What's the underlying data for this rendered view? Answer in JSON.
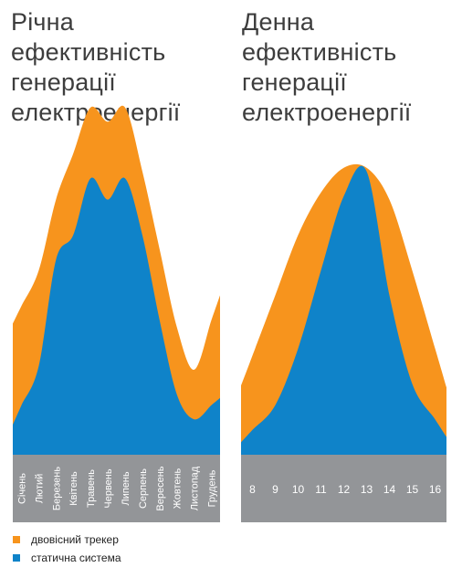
{
  "chart_data": [
    {
      "type": "area",
      "title": "Річна\nефективність\nгенерації\nелектроенергії",
      "categories": [
        "Січень",
        "Лютий",
        "Березень",
        "Квітень",
        "Травень",
        "Червень",
        "Липень",
        "Серпень",
        "Вересень",
        "Жовтень",
        "Листопад",
        "Грудень"
      ],
      "series": [
        {
          "name": "двовісний трекер",
          "values": [
            0.42,
            0.52,
            0.72,
            0.85,
            0.98,
            0.94,
            0.98,
            0.8,
            0.58,
            0.36,
            0.24,
            0.38
          ]
        },
        {
          "name": "статична система",
          "values": [
            0.14,
            0.25,
            0.55,
            0.62,
            0.78,
            0.72,
            0.78,
            0.62,
            0.38,
            0.17,
            0.1,
            0.14
          ]
        }
      ]
    },
    {
      "type": "area",
      "title": "Денна\nефективність\nгенерації\nелектроенергії",
      "categories": [
        "8",
        "9",
        "10",
        "11",
        "12",
        "13",
        "14",
        "15",
        "16"
      ],
      "series": [
        {
          "name": "двовісний трекер",
          "values": [
            0.28,
            0.45,
            0.62,
            0.74,
            0.81,
            0.81,
            0.72,
            0.52,
            0.3
          ]
        },
        {
          "name": "статична система",
          "values": [
            0.07,
            0.14,
            0.3,
            0.52,
            0.73,
            0.8,
            0.45,
            0.2,
            0.1
          ]
        }
      ]
    }
  ],
  "legend": [
    {
      "label": "двовісний трекер",
      "color": "#f7941d"
    },
    {
      "label": "статична система",
      "color": "#0f83c9"
    }
  ],
  "colors": {
    "tracker": "#f7941d",
    "static": "#0f83c9",
    "axis_band": "#939598",
    "tick_text": "#ffffff"
  }
}
